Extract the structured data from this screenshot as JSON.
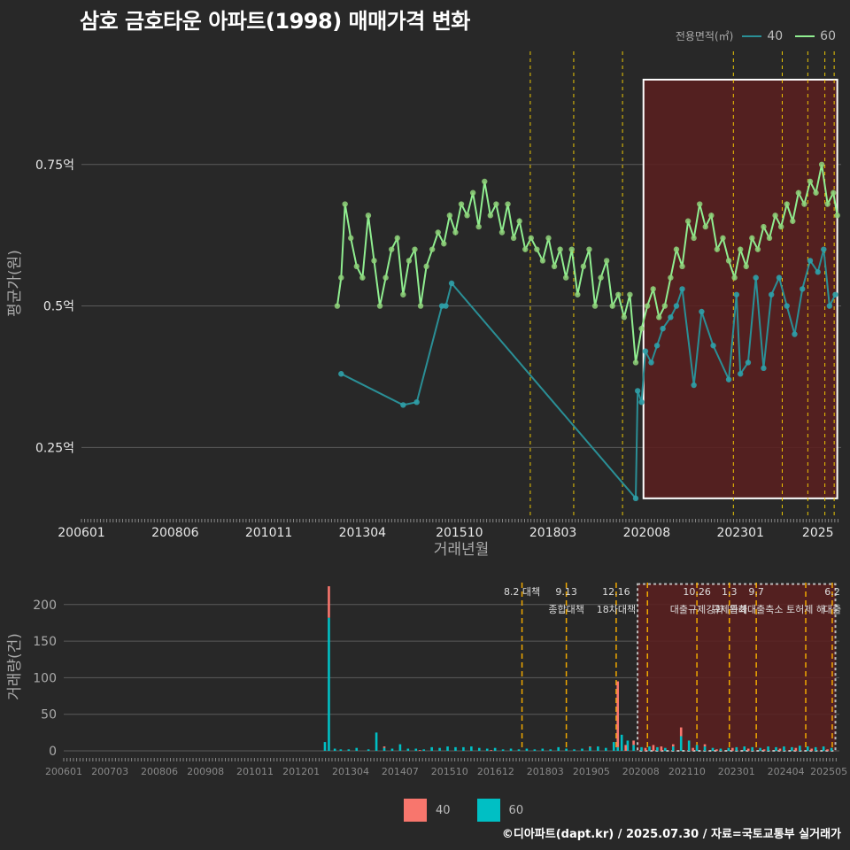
{
  "title": "삼호 금호타운 아파트(1998) 매매가격 변화",
  "footer": "©디아파트(dapt.kr) / 2025.07.30 / 자료=국토교통부 실거래가",
  "colors": {
    "background": "#282828",
    "series40_line": "#2a8f96",
    "series40_point": "#2fa0a8",
    "series60_line": "#90ee90",
    "series60_point": "#8fd27a",
    "bar40": "#f8766d",
    "bar60": "#00bfc4",
    "policy_line": "#ffd700",
    "highlight_fill": "#5a1f1f",
    "grid": "#5a5a5a"
  },
  "legend_top": {
    "title": "전용면적(㎡)",
    "items": [
      {
        "name": "40",
        "color": "#2a8f96"
      },
      {
        "name": "60",
        "color": "#90ee90"
      }
    ]
  },
  "legend_bottom": {
    "items": [
      {
        "name": "40",
        "color": "#f8766d"
      },
      {
        "name": "60",
        "color": "#00bfc4"
      }
    ]
  },
  "chart_data": [
    {
      "type": "line",
      "xlabel": "거래년월",
      "ylabel": "평균가(원)",
      "x_ticks": [
        "200601",
        "200806",
        "201011",
        "201304",
        "201510",
        "201803",
        "202008",
        "202301",
        "2025"
      ],
      "y_ticks": [
        {
          "value": 0.25,
          "label": "0.25억"
        },
        {
          "value": 0.5,
          "label": "0.5억"
        },
        {
          "value": 0.75,
          "label": "0.75억"
        }
      ],
      "ylim": [
        0.13,
        0.95
      ],
      "xlim": [
        2006.0,
        2025.6
      ],
      "policy_lines": [
        2017.58,
        2018.7,
        2019.96,
        2022.82,
        2024.08,
        2024.74,
        2025.18,
        2025.42
      ],
      "highlight": {
        "x_start": 2020.5,
        "x_end": 2025.5,
        "y_start": 0.16,
        "y_end": 0.9
      },
      "series": [
        {
          "name": "40",
          "values": [
            [
              2012.7,
              0.38
            ],
            [
              2014.3,
              0.325
            ],
            [
              2014.65,
              0.33
            ],
            [
              2015.3,
              0.5
            ],
            [
              2015.4,
              0.5
            ],
            [
              2015.55,
              0.54
            ],
            [
              2020.3,
              0.16
            ],
            [
              2020.35,
              0.35
            ],
            [
              2020.45,
              0.33
            ],
            [
              2020.55,
              0.42
            ],
            [
              2020.7,
              0.4
            ],
            [
              2020.85,
              0.43
            ],
            [
              2021.0,
              0.46
            ],
            [
              2021.2,
              0.48
            ],
            [
              2021.35,
              0.5
            ],
            [
              2021.5,
              0.53
            ],
            [
              2021.8,
              0.36
            ],
            [
              2022.0,
              0.49
            ],
            [
              2022.3,
              0.43
            ],
            [
              2022.7,
              0.37
            ],
            [
              2022.9,
              0.52
            ],
            [
              2023.0,
              0.38
            ],
            [
              2023.2,
              0.4
            ],
            [
              2023.4,
              0.55
            ],
            [
              2023.6,
              0.39
            ],
            [
              2023.8,
              0.52
            ],
            [
              2024.0,
              0.55
            ],
            [
              2024.2,
              0.5
            ],
            [
              2024.4,
              0.45
            ],
            [
              2024.6,
              0.53
            ],
            [
              2024.8,
              0.58
            ],
            [
              2025.0,
              0.56
            ],
            [
              2025.15,
              0.6
            ],
            [
              2025.3,
              0.5
            ],
            [
              2025.45,
              0.52
            ]
          ]
        },
        {
          "name": "60",
          "values": [
            [
              2012.6,
              0.5
            ],
            [
              2012.7,
              0.55
            ],
            [
              2012.8,
              0.68
            ],
            [
              2012.95,
              0.62
            ],
            [
              2013.1,
              0.57
            ],
            [
              2013.25,
              0.55
            ],
            [
              2013.4,
              0.66
            ],
            [
              2013.55,
              0.58
            ],
            [
              2013.7,
              0.5
            ],
            [
              2013.85,
              0.55
            ],
            [
              2014.0,
              0.6
            ],
            [
              2014.15,
              0.62
            ],
            [
              2014.3,
              0.52
            ],
            [
              2014.45,
              0.58
            ],
            [
              2014.6,
              0.6
            ],
            [
              2014.75,
              0.5
            ],
            [
              2014.9,
              0.57
            ],
            [
              2015.05,
              0.6
            ],
            [
              2015.2,
              0.63
            ],
            [
              2015.35,
              0.61
            ],
            [
              2015.5,
              0.66
            ],
            [
              2015.65,
              0.63
            ],
            [
              2015.8,
              0.68
            ],
            [
              2015.95,
              0.66
            ],
            [
              2016.1,
              0.7
            ],
            [
              2016.25,
              0.64
            ],
            [
              2016.4,
              0.72
            ],
            [
              2016.55,
              0.66
            ],
            [
              2016.7,
              0.68
            ],
            [
              2016.85,
              0.63
            ],
            [
              2017.0,
              0.68
            ],
            [
              2017.15,
              0.62
            ],
            [
              2017.3,
              0.65
            ],
            [
              2017.45,
              0.6
            ],
            [
              2017.6,
              0.62
            ],
            [
              2017.75,
              0.6
            ],
            [
              2017.9,
              0.58
            ],
            [
              2018.05,
              0.62
            ],
            [
              2018.2,
              0.57
            ],
            [
              2018.35,
              0.6
            ],
            [
              2018.5,
              0.55
            ],
            [
              2018.65,
              0.6
            ],
            [
              2018.8,
              0.52
            ],
            [
              2018.95,
              0.57
            ],
            [
              2019.1,
              0.6
            ],
            [
              2019.25,
              0.5
            ],
            [
              2019.4,
              0.55
            ],
            [
              2019.55,
              0.58
            ],
            [
              2019.7,
              0.5
            ],
            [
              2019.85,
              0.52
            ],
            [
              2020.0,
              0.48
            ],
            [
              2020.15,
              0.52
            ],
            [
              2020.3,
              0.4
            ],
            [
              2020.45,
              0.46
            ],
            [
              2020.6,
              0.5
            ],
            [
              2020.75,
              0.53
            ],
            [
              2020.9,
              0.48
            ],
            [
              2021.05,
              0.5
            ],
            [
              2021.2,
              0.55
            ],
            [
              2021.35,
              0.6
            ],
            [
              2021.5,
              0.57
            ],
            [
              2021.65,
              0.65
            ],
            [
              2021.8,
              0.62
            ],
            [
              2021.95,
              0.68
            ],
            [
              2022.1,
              0.64
            ],
            [
              2022.25,
              0.66
            ],
            [
              2022.4,
              0.6
            ],
            [
              2022.55,
              0.62
            ],
            [
              2022.7,
              0.58
            ],
            [
              2022.85,
              0.55
            ],
            [
              2023.0,
              0.6
            ],
            [
              2023.15,
              0.57
            ],
            [
              2023.3,
              0.62
            ],
            [
              2023.45,
              0.6
            ],
            [
              2023.6,
              0.64
            ],
            [
              2023.75,
              0.62
            ],
            [
              2023.9,
              0.66
            ],
            [
              2024.05,
              0.64
            ],
            [
              2024.2,
              0.68
            ],
            [
              2024.35,
              0.65
            ],
            [
              2024.5,
              0.7
            ],
            [
              2024.65,
              0.68
            ],
            [
              2024.8,
              0.72
            ],
            [
              2024.95,
              0.7
            ],
            [
              2025.1,
              0.75
            ],
            [
              2025.25,
              0.68
            ],
            [
              2025.4,
              0.7
            ],
            [
              2025.5,
              0.66
            ]
          ]
        }
      ]
    },
    {
      "type": "bar",
      "ylabel": "거래량(건)",
      "y_ticks": [
        0,
        50,
        100,
        150,
        200
      ],
      "ylim": [
        0,
        230
      ],
      "x_ticks": [
        "200601",
        "200703",
        "200806",
        "200908",
        "201011",
        "201201",
        "201304",
        "201407",
        "201510",
        "201612",
        "201803",
        "201905",
        "202008",
        "202110",
        "202301",
        "202404",
        "202505"
      ],
      "policy_lines": [
        2017.58,
        2018.7,
        2019.96,
        2020.75,
        2022.0,
        2022.82,
        2023.5,
        2024.75,
        2025.42
      ],
      "highlight": {
        "x_start": 2020.5,
        "x_end": 2025.5,
        "y_top": 228
      },
      "annotations": [
        {
          "x": 2017.58,
          "line1": "8.2 대책",
          "line2": ""
        },
        {
          "x": 2018.7,
          "line1": "9.13",
          "line2": "종합대책"
        },
        {
          "x": 2019.96,
          "line1": "12.16",
          "line2": "18차대책"
        },
        {
          "x": 2022.0,
          "line1": "10.26",
          "line2": "대출규제강화"
        },
        {
          "x": 2022.82,
          "line1": "1.3",
          "line2": "규제완화"
        },
        {
          "x": 2023.5,
          "line1": "9.7",
          "line2": "특례대출축소"
        },
        {
          "x": 2024.75,
          "line1": "",
          "line2": "토허제 해"
        },
        {
          "x": 2025.42,
          "line1": "6.2",
          "line2": "대출"
        }
      ],
      "series": [
        {
          "name": "40",
          "values": [
            [
              2012.7,
              43
            ],
            [
              2014.1,
              2
            ],
            [
              2015.0,
              1
            ],
            [
              2016.8,
              1
            ],
            [
              2019.3,
              1
            ],
            [
              2020.0,
              90
            ],
            [
              2020.2,
              8
            ],
            [
              2020.4,
              6
            ],
            [
              2020.7,
              4
            ],
            [
              2020.9,
              8
            ],
            [
              2021.1,
              6
            ],
            [
              2021.4,
              3
            ],
            [
              2021.6,
              12
            ],
            [
              2021.9,
              4
            ],
            [
              2022.2,
              3
            ],
            [
              2022.5,
              2
            ],
            [
              2022.9,
              4
            ],
            [
              2023.3,
              3
            ],
            [
              2023.7,
              2
            ],
            [
              2024.1,
              3
            ],
            [
              2024.5,
              4
            ],
            [
              2024.9,
              3
            ],
            [
              2025.3,
              2
            ]
          ]
        },
        {
          "name": "60",
          "values": [
            [
              2012.6,
              12
            ],
            [
              2012.7,
              182
            ],
            [
              2012.85,
              3
            ],
            [
              2013.0,
              2
            ],
            [
              2013.2,
              2
            ],
            [
              2013.4,
              4
            ],
            [
              2013.7,
              2
            ],
            [
              2013.9,
              25
            ],
            [
              2014.1,
              4
            ],
            [
              2014.3,
              3
            ],
            [
              2014.5,
              9
            ],
            [
              2014.7,
              3
            ],
            [
              2014.9,
              3
            ],
            [
              2015.1,
              2
            ],
            [
              2015.3,
              5
            ],
            [
              2015.5,
              4
            ],
            [
              2015.7,
              6
            ],
            [
              2015.9,
              5
            ],
            [
              2016.1,
              5
            ],
            [
              2016.3,
              6
            ],
            [
              2016.5,
              4
            ],
            [
              2016.7,
              3
            ],
            [
              2016.9,
              4
            ],
            [
              2017.1,
              2
            ],
            [
              2017.3,
              3
            ],
            [
              2017.5,
              2
            ],
            [
              2017.7,
              3
            ],
            [
              2017.9,
              2
            ],
            [
              2018.1,
              3
            ],
            [
              2018.3,
              2
            ],
            [
              2018.5,
              5
            ],
            [
              2018.7,
              3
            ],
            [
              2018.9,
              2
            ],
            [
              2019.1,
              3
            ],
            [
              2019.3,
              5
            ],
            [
              2019.5,
              6
            ],
            [
              2019.7,
              4
            ],
            [
              2019.9,
              12
            ],
            [
              2020.0,
              5
            ],
            [
              2020.1,
              22
            ],
            [
              2020.25,
              14
            ],
            [
              2020.4,
              8
            ],
            [
              2020.6,
              5
            ],
            [
              2020.8,
              6
            ],
            [
              2021.0,
              5
            ],
            [
              2021.2,
              4
            ],
            [
              2021.4,
              6
            ],
            [
              2021.6,
              20
            ],
            [
              2021.8,
              14
            ],
            [
              2022.0,
              8
            ],
            [
              2022.2,
              6
            ],
            [
              2022.4,
              4
            ],
            [
              2022.6,
              3
            ],
            [
              2022.8,
              4
            ],
            [
              2023.0,
              5
            ],
            [
              2023.2,
              6
            ],
            [
              2023.4,
              5
            ],
            [
              2023.6,
              4
            ],
            [
              2023.8,
              6
            ],
            [
              2024.0,
              5
            ],
            [
              2024.2,
              6
            ],
            [
              2024.4,
              5
            ],
            [
              2024.6,
              7
            ],
            [
              2024.8,
              6
            ],
            [
              2025.0,
              5
            ],
            [
              2025.2,
              6
            ],
            [
              2025.4,
              4
            ]
          ]
        }
      ]
    }
  ]
}
